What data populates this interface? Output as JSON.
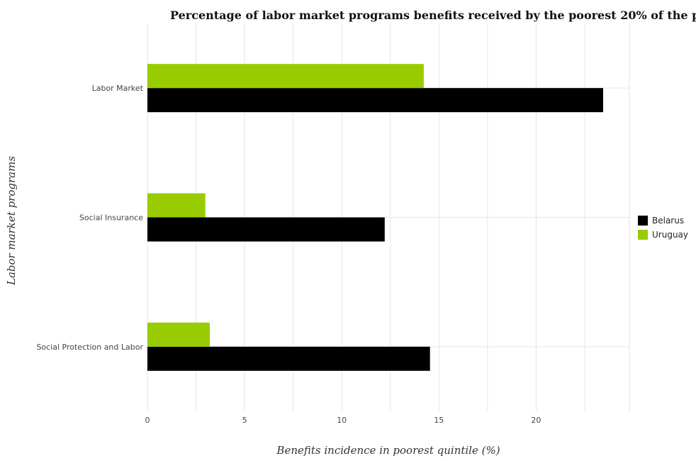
{
  "chart_data": {
    "type": "bar",
    "orientation": "horizontal",
    "title": "Percentage of labor market programs benefits received by the poorest 20% of the population of countries",
    "xlabel": "Benefits incidence in poorest quintile (%)",
    "ylabel": "Labor market programs",
    "categories": [
      "Labor Market",
      "Social Insurance",
      "Social Protection and Labor"
    ],
    "series": [
      {
        "name": "Belarus",
        "color": "#000000",
        "values": [
          23.45,
          12.21,
          14.54
        ]
      },
      {
        "name": "Uruguay",
        "color": "#99cc00",
        "values": [
          14.22,
          2.98,
          3.21
        ]
      }
    ],
    "xlim": [
      0,
      24.8
    ],
    "xticks": [
      0,
      5,
      10,
      15,
      20
    ],
    "grid": true,
    "legend_position": "right"
  }
}
